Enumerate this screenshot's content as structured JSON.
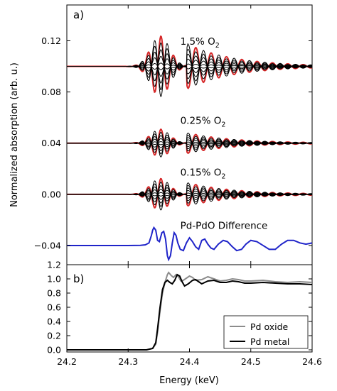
{
  "x_axis": {
    "label": "Energy (keV)",
    "range": [
      24.2,
      24.6
    ],
    "ticks": [
      "24.2",
      "24.3",
      "24.4",
      "24.5",
      "24.6"
    ]
  },
  "chart_data": [
    {
      "panel": "a)",
      "type": "line",
      "ylabel": "Normalized absorption (arb. u.)",
      "xlim": [
        24.2,
        24.6
      ],
      "ylim": [
        -0.055,
        0.148
      ],
      "yticks": [
        -0.04,
        0.0,
        0.04,
        0.08,
        0.12
      ],
      "ytick_labels": [
        "−0.04",
        "0.00",
        "0.04",
        "0.08",
        "0.12"
      ],
      "grid": false,
      "legend": "none",
      "annotations": [
        {
          "label": "1.5% O",
          "sub": "2",
          "x": 24.385,
          "y": 0.117
        },
        {
          "label": "0.25% O",
          "sub": "2",
          "x": 24.385,
          "y": 0.055
        },
        {
          "label": "0.15% O",
          "sub": "2",
          "x": 24.385,
          "y": 0.0145
        },
        {
          "label": "Pd-PdO Difference",
          "x": 24.385,
          "y": -0.027
        }
      ],
      "groups": [
        {
          "name": "1.5% O2",
          "baseline": 0.1,
          "amplitude": 0.024,
          "curves": 10,
          "envelope_color": "#d62728",
          "color": "#000000"
        },
        {
          "name": "0.25% O2",
          "baseline": 0.04,
          "amplitude": 0.011,
          "curves": 10,
          "envelope_color": "#d62728",
          "color": "#000000"
        },
        {
          "name": "0.15% O2",
          "baseline": 0.0,
          "amplitude": 0.0125,
          "curves": 10,
          "envelope_color": "#d62728",
          "color": "#000000"
        }
      ],
      "difference": {
        "name": "Pd-PdO Difference",
        "color": "#1f24c9",
        "points": [
          [
            24.2,
            -0.04
          ],
          [
            24.3,
            -0.04
          ],
          [
            24.32,
            -0.0399
          ],
          [
            24.328,
            -0.0395
          ],
          [
            24.334,
            -0.038
          ],
          [
            24.338,
            -0.032
          ],
          [
            24.34,
            -0.028
          ],
          [
            24.342,
            -0.026
          ],
          [
            24.345,
            -0.028
          ],
          [
            24.348,
            -0.036
          ],
          [
            24.351,
            -0.037
          ],
          [
            24.355,
            -0.03
          ],
          [
            24.358,
            -0.029
          ],
          [
            24.361,
            -0.035
          ],
          [
            24.364,
            -0.048
          ],
          [
            24.366,
            -0.051
          ],
          [
            24.369,
            -0.048
          ],
          [
            24.372,
            -0.038
          ],
          [
            24.375,
            -0.03
          ],
          [
            24.378,
            -0.032
          ],
          [
            24.381,
            -0.038
          ],
          [
            24.385,
            -0.043
          ],
          [
            24.39,
            -0.044
          ],
          [
            24.395,
            -0.038
          ],
          [
            24.4,
            -0.034
          ],
          [
            24.405,
            -0.037
          ],
          [
            24.41,
            -0.041
          ],
          [
            24.415,
            -0.043
          ],
          [
            24.42,
            -0.036
          ],
          [
            24.425,
            -0.035
          ],
          [
            24.43,
            -0.039
          ],
          [
            24.435,
            -0.042
          ],
          [
            24.44,
            -0.043
          ],
          [
            24.447,
            -0.039
          ],
          [
            24.455,
            -0.036
          ],
          [
            24.462,
            -0.037
          ],
          [
            24.47,
            -0.041
          ],
          [
            24.477,
            -0.044
          ],
          [
            24.485,
            -0.043
          ],
          [
            24.492,
            -0.039
          ],
          [
            24.5,
            -0.036
          ],
          [
            24.51,
            -0.037
          ],
          [
            24.52,
            -0.04
          ],
          [
            24.53,
            -0.043
          ],
          [
            24.54,
            -0.043
          ],
          [
            24.55,
            -0.039
          ],
          [
            24.56,
            -0.036
          ],
          [
            24.57,
            -0.036
          ],
          [
            24.58,
            -0.038
          ],
          [
            24.59,
            -0.039
          ],
          [
            24.6,
            -0.038
          ]
        ]
      }
    },
    {
      "panel": "b)",
      "type": "line",
      "xlabel": "Energy (keV)",
      "xlim": [
        24.2,
        24.6
      ],
      "ylim": [
        -0.03,
        1.2
      ],
      "yticks": [
        0.0,
        0.2,
        0.4,
        0.6,
        0.8,
        1.0,
        1.2
      ],
      "ytick_labels": [
        "0.0",
        "0.2",
        "0.4",
        "0.6",
        "0.8",
        "1.0",
        "1.2"
      ],
      "grid": false,
      "legend": "bottom-right",
      "series": [
        {
          "name": "Pd oxide",
          "color": "#8c8c8c",
          "points": [
            [
              24.2,
              0.0
            ],
            [
              24.33,
              0.0
            ],
            [
              24.34,
              0.02
            ],
            [
              24.345,
              0.08
            ],
            [
              24.348,
              0.25
            ],
            [
              24.352,
              0.55
            ],
            [
              24.356,
              0.8
            ],
            [
              24.36,
              0.95
            ],
            [
              24.364,
              1.06
            ],
            [
              24.366,
              1.09
            ],
            [
              24.37,
              1.05
            ],
            [
              24.374,
              1.02
            ],
            [
              24.378,
              1.06
            ],
            [
              24.382,
              1.03
            ],
            [
              24.386,
              0.97
            ],
            [
              24.39,
              0.98
            ],
            [
              24.395,
              1.01
            ],
            [
              24.4,
              1.04
            ],
            [
              24.405,
              1.02
            ],
            [
              24.41,
              0.98
            ],
            [
              24.42,
              0.99
            ],
            [
              24.43,
              1.03
            ],
            [
              24.44,
              1.0
            ],
            [
              24.45,
              0.97
            ],
            [
              24.46,
              0.98
            ],
            [
              24.47,
              1.0
            ],
            [
              24.48,
              0.99
            ],
            [
              24.49,
              0.97
            ],
            [
              24.5,
              0.97
            ],
            [
              24.52,
              0.98
            ],
            [
              24.54,
              0.96
            ],
            [
              24.56,
              0.95
            ],
            [
              24.58,
              0.96
            ],
            [
              24.6,
              0.95
            ]
          ]
        },
        {
          "name": "Pd metal",
          "color": "#000000",
          "points": [
            [
              24.2,
              0.0
            ],
            [
              24.33,
              0.0
            ],
            [
              24.34,
              0.02
            ],
            [
              24.345,
              0.1
            ],
            [
              24.348,
              0.3
            ],
            [
              24.352,
              0.6
            ],
            [
              24.356,
              0.85
            ],
            [
              24.36,
              0.95
            ],
            [
              24.364,
              0.98
            ],
            [
              24.368,
              0.95
            ],
            [
              24.372,
              0.93
            ],
            [
              24.376,
              0.98
            ],
            [
              24.38,
              1.06
            ],
            [
              24.384,
              1.04
            ],
            [
              24.388,
              0.96
            ],
            [
              24.392,
              0.9
            ],
            [
              24.398,
              0.93
            ],
            [
              24.405,
              0.98
            ],
            [
              24.41,
              0.99
            ],
            [
              24.415,
              0.96
            ],
            [
              24.42,
              0.93
            ],
            [
              24.43,
              0.97
            ],
            [
              24.44,
              0.98
            ],
            [
              24.45,
              0.95
            ],
            [
              24.46,
              0.95
            ],
            [
              24.47,
              0.97
            ],
            [
              24.48,
              0.96
            ],
            [
              24.49,
              0.94
            ],
            [
              24.5,
              0.94
            ],
            [
              24.52,
              0.95
            ],
            [
              24.54,
              0.94
            ],
            [
              24.56,
              0.93
            ],
            [
              24.58,
              0.93
            ],
            [
              24.6,
              0.92
            ]
          ]
        }
      ]
    }
  ]
}
